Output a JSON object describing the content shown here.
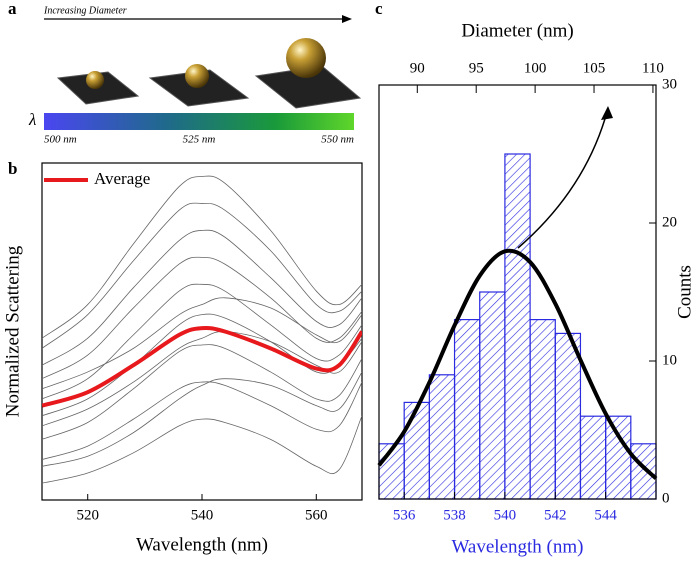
{
  "panel_a": {
    "label": "a",
    "arrow_text": "Increasing Diameter",
    "lambda": "λ",
    "colorbar_labels": [
      "500 nm",
      "525 nm",
      "550 nm"
    ]
  },
  "chart_data": [
    {
      "type": "line",
      "label": "b",
      "xlabel": "Wavelength (nm)",
      "ylabel": "Normalized Scattering",
      "x": [
        512,
        520,
        528,
        536,
        540,
        544,
        552,
        560,
        564,
        568
      ],
      "xlim": [
        512,
        568
      ],
      "xticks": [
        520,
        540,
        560
      ],
      "ylim": [
        0,
        1
      ],
      "legend": "upper left",
      "series": [
        {
          "color": "#666666",
          "values": [
            0.05,
            0.08,
            0.14,
            0.22,
            0.24,
            0.23,
            0.18,
            0.1,
            0.09,
            0.25
          ]
        },
        {
          "color": "#666666",
          "values": [
            0.12,
            0.16,
            0.24,
            0.33,
            0.35,
            0.34,
            0.28,
            0.21,
            0.22,
            0.35
          ]
        },
        {
          "color": "#666666",
          "values": [
            0.18,
            0.23,
            0.33,
            0.44,
            0.46,
            0.45,
            0.38,
            0.3,
            0.31,
            0.42
          ]
        },
        {
          "color": "#666666",
          "values": [
            0.25,
            0.3,
            0.4,
            0.52,
            0.55,
            0.54,
            0.47,
            0.38,
            0.4,
            0.48
          ]
        },
        {
          "color": "#666666",
          "values": [
            0.3,
            0.36,
            0.49,
            0.62,
            0.64,
            0.62,
            0.52,
            0.42,
            0.43,
            0.52
          ]
        },
        {
          "color": "#666666",
          "values": [
            0.36,
            0.43,
            0.57,
            0.7,
            0.72,
            0.7,
            0.6,
            0.48,
            0.48,
            0.56
          ]
        },
        {
          "color": "#666666",
          "values": [
            0.4,
            0.48,
            0.63,
            0.77,
            0.8,
            0.78,
            0.66,
            0.53,
            0.52,
            0.6
          ]
        },
        {
          "color": "#666666",
          "values": [
            0.45,
            0.55,
            0.71,
            0.86,
            0.88,
            0.86,
            0.74,
            0.58,
            0.56,
            0.62
          ]
        },
        {
          "color": "#666666",
          "values": [
            0.48,
            0.58,
            0.76,
            0.93,
            0.96,
            0.94,
            0.8,
            0.62,
            0.58,
            0.64
          ]
        },
        {
          "color": "#666666",
          "values": [
            0.22,
            0.27,
            0.35,
            0.45,
            0.48,
            0.5,
            0.47,
            0.4,
            0.38,
            0.47
          ]
        },
        {
          "color": "#666666",
          "values": [
            0.1,
            0.13,
            0.2,
            0.3,
            0.34,
            0.36,
            0.34,
            0.28,
            0.27,
            0.38
          ]
        },
        {
          "color": "#666666",
          "values": [
            0.33,
            0.38,
            0.45,
            0.55,
            0.58,
            0.6,
            0.57,
            0.49,
            0.47,
            0.55
          ]
        },
        {
          "name": "Average",
          "color": "#e8191c",
          "values": [
            0.28,
            0.32,
            0.4,
            0.49,
            0.51,
            0.5,
            0.45,
            0.39,
            0.4,
            0.5
          ]
        }
      ]
    },
    {
      "type": "histogram",
      "label": "c",
      "xlabel": "Wavelength (nm)",
      "ylabel": "Counts",
      "x2label": "Diameter (nm)",
      "bins": [
        535,
        536,
        537,
        538,
        539,
        540,
        541,
        542,
        543,
        544,
        545,
        546
      ],
      "values": [
        4,
        7,
        9,
        13,
        15,
        25,
        13,
        12,
        6,
        6,
        4
      ],
      "color": "#2a2ae0",
      "xlim": [
        535,
        546
      ],
      "xticks": [
        536,
        538,
        540,
        542,
        544
      ],
      "x2lim": [
        86.75,
        110.26
      ],
      "x2ticks": [
        90,
        95,
        100,
        105,
        110
      ],
      "ylim": [
        0,
        30
      ],
      "yticks": [
        0,
        10,
        20,
        30
      ],
      "fit": {
        "color": "#000000",
        "x": [
          535,
          536,
          537,
          538,
          539,
          540,
          541,
          542,
          543,
          544,
          545,
          546
        ],
        "values": [
          2.44,
          4.88,
          8.44,
          12.58,
          16.18,
          17.95,
          17.17,
          14.16,
          10.08,
          6.19,
          3.28,
          1.49
        ]
      }
    }
  ]
}
